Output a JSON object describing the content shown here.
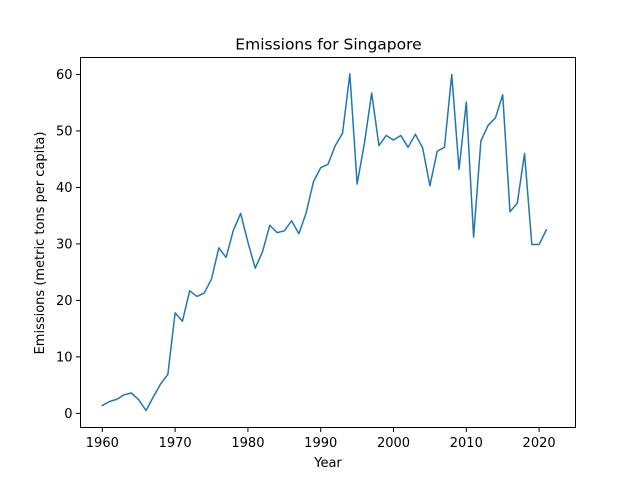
{
  "chart_data": {
    "type": "line",
    "title": "Emissions for Singapore",
    "xlabel": "Year",
    "ylabel": "Emissions (metric tons per capita)",
    "xlim": [
      1957,
      2025
    ],
    "ylim": [
      -2.5,
      63
    ],
    "xticks": [
      1960,
      1970,
      1980,
      1990,
      2000,
      2010,
      2020
    ],
    "yticks": [
      0,
      10,
      20,
      30,
      40,
      50,
      60
    ],
    "grid": false,
    "legend": "none",
    "series": [
      {
        "color": "#1f77b4",
        "x": [
          1960,
          1961,
          1962,
          1963,
          1964,
          1965,
          1966,
          1967,
          1968,
          1969,
          1970,
          1971,
          1972,
          1973,
          1974,
          1975,
          1976,
          1977,
          1978,
          1979,
          1980,
          1981,
          1982,
          1983,
          1984,
          1985,
          1986,
          1987,
          1988,
          1989,
          1990,
          1991,
          1992,
          1993,
          1994,
          1995,
          1996,
          1997,
          1998,
          1999,
          2000,
          2001,
          2002,
          2003,
          2004,
          2005,
          2006,
          2007,
          2008,
          2009,
          2010,
          2011,
          2012,
          2013,
          2014,
          2015,
          2016,
          2017,
          2018,
          2019,
          2020,
          2021
        ],
        "values": [
          1.4,
          2.1,
          2.5,
          3.3,
          3.6,
          2.4,
          0.5,
          2.9,
          5.2,
          6.9,
          17.8,
          16.3,
          21.7,
          20.7,
          21.3,
          23.8,
          29.3,
          27.6,
          32.4,
          35.4,
          30.3,
          25.7,
          28.6,
          33.3,
          32.0,
          32.3,
          34.1,
          31.8,
          35.5,
          41.0,
          43.5,
          44.1,
          47.4,
          49.6,
          60.1,
          40.6,
          47.8,
          56.7,
          47.4,
          49.2,
          48.4,
          49.2,
          47.1,
          49.4,
          47.0,
          40.3,
          46.4,
          47.1,
          60.0,
          43.2,
          55.1,
          31.2,
          48.2,
          51.0,
          52.3,
          56.4,
          35.7,
          37.2,
          46.0,
          29.9,
          29.9,
          32.5
        ]
      }
    ]
  }
}
